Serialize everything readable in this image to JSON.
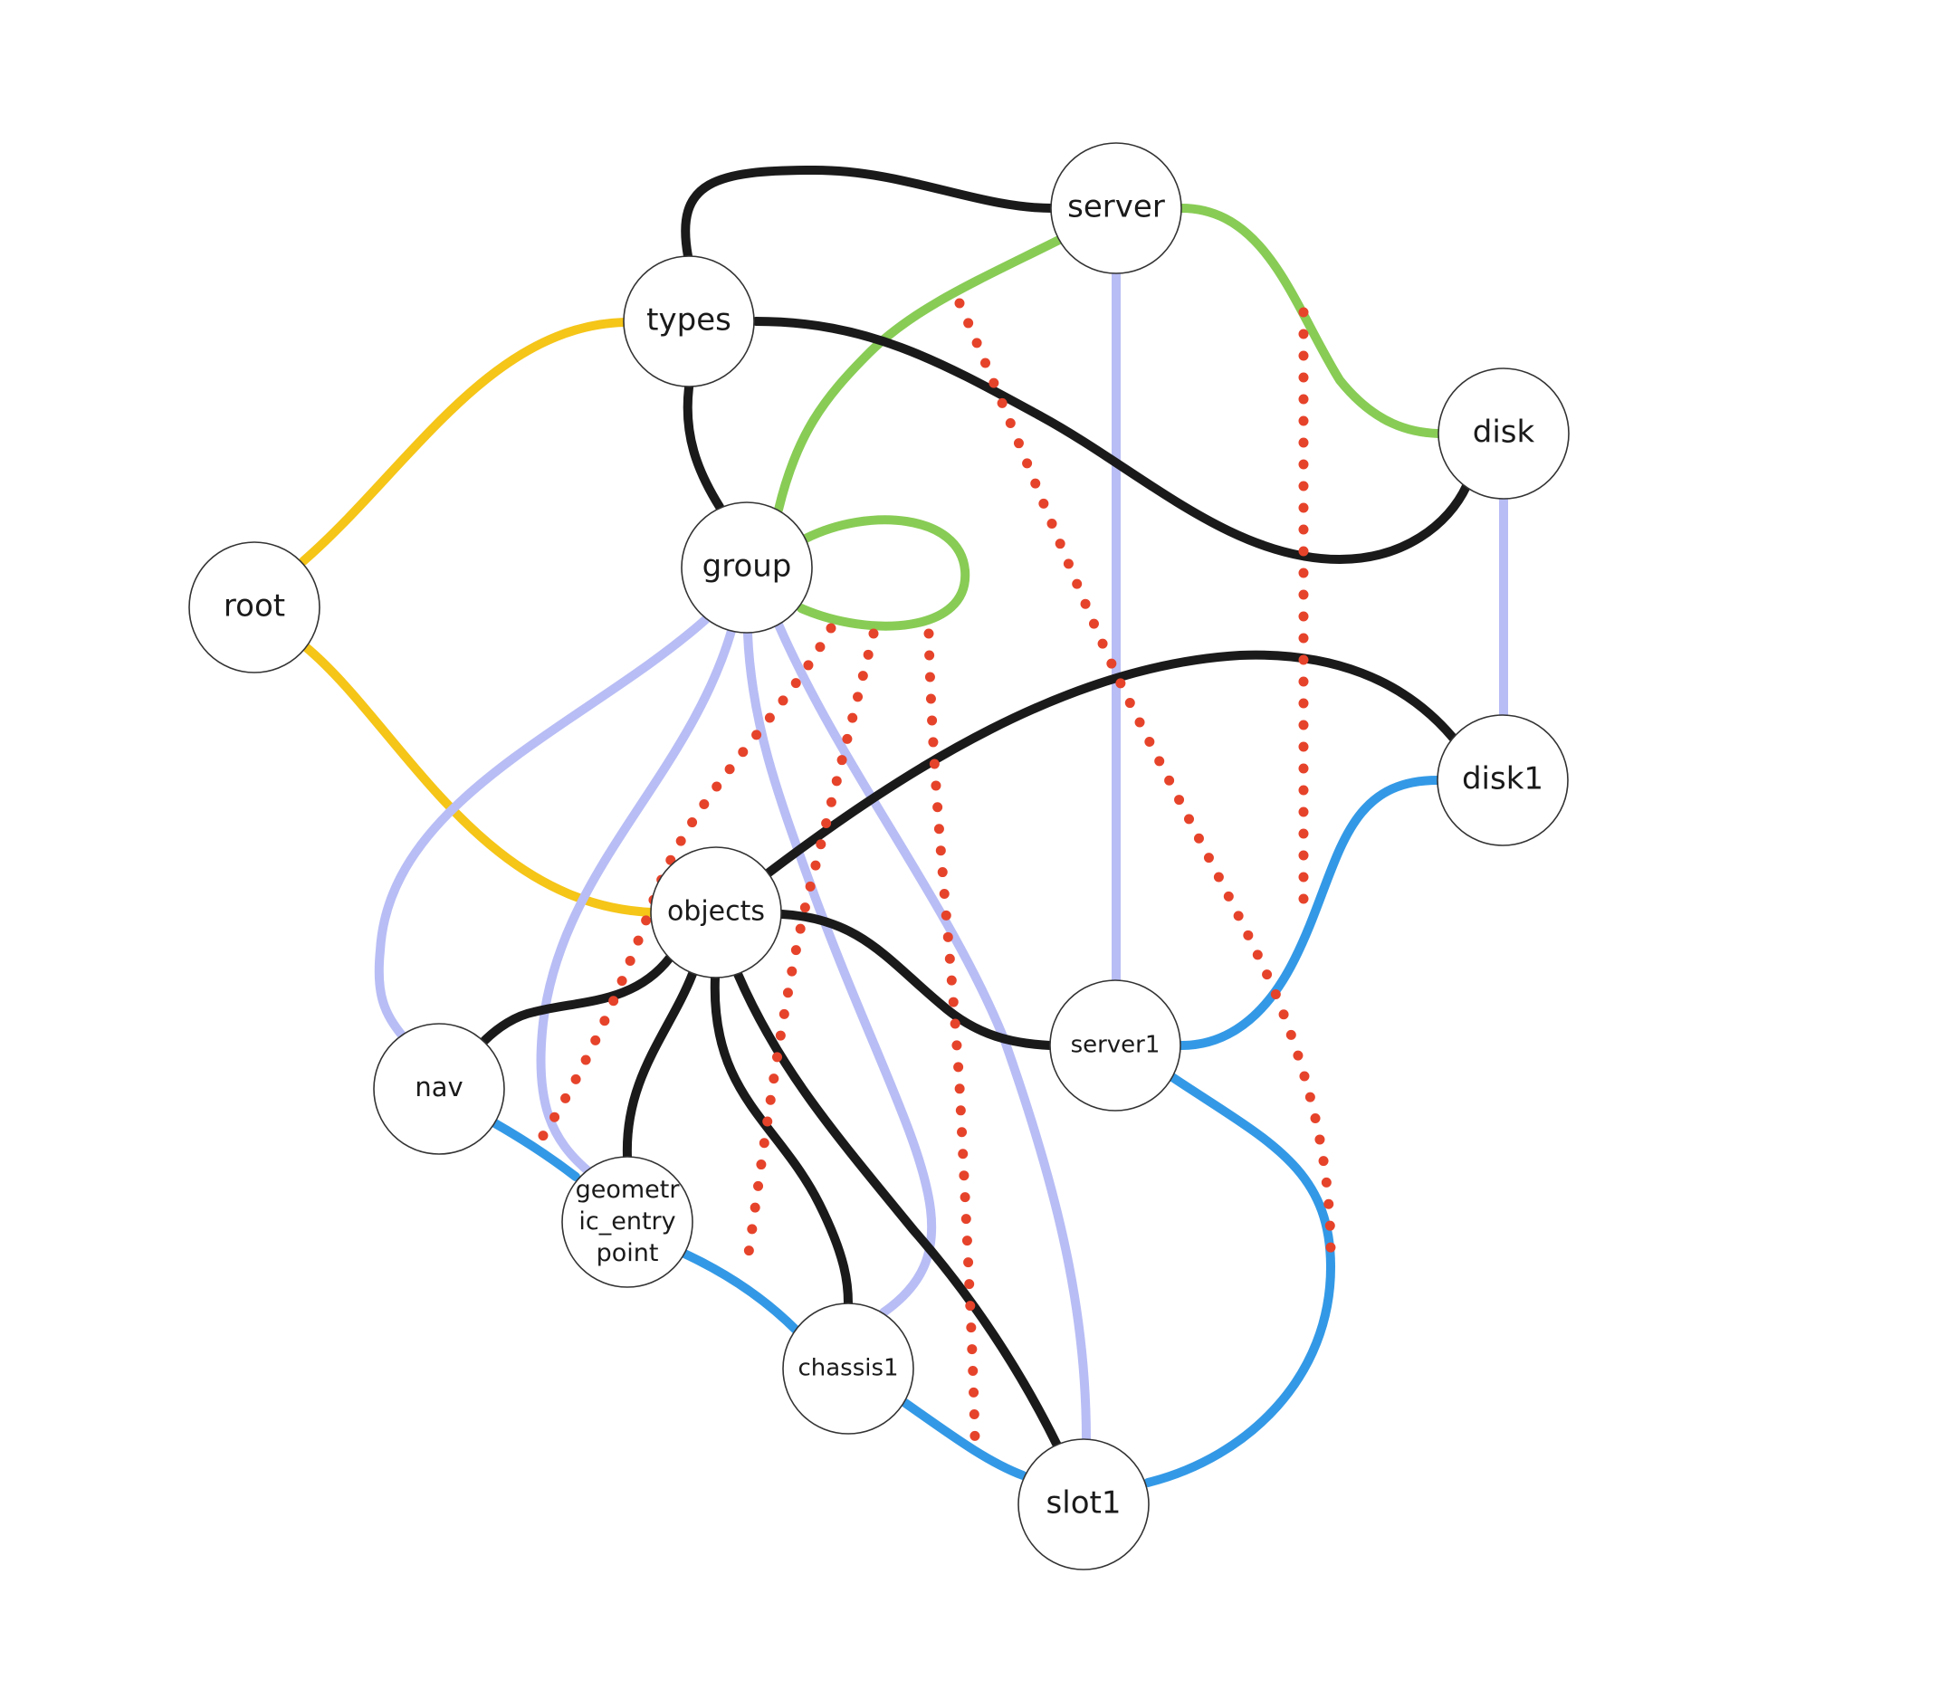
{
  "colors": {
    "hierarchy": "#f5c518",
    "structure": "#1a1a1a",
    "membership": "#88cc55",
    "reference": "#b8bdf5",
    "connection": "#3399e6",
    "dependency": "#e6432b"
  },
  "nodes": [
    {
      "id": "root",
      "label": "root"
    },
    {
      "id": "types",
      "label": "types"
    },
    {
      "id": "server",
      "label": "server"
    },
    {
      "id": "group",
      "label": "group"
    },
    {
      "id": "disk",
      "label": "disk"
    },
    {
      "id": "disk1",
      "label": "disk1"
    },
    {
      "id": "objects",
      "label": "objects"
    },
    {
      "id": "server1",
      "label": "server1"
    },
    {
      "id": "nav",
      "label": "nav"
    },
    {
      "id": "geometric_entry_point",
      "label": [
        "geometr",
        "ic_entry",
        "point"
      ]
    },
    {
      "id": "chassis1",
      "label": "chassis1"
    },
    {
      "id": "slot1",
      "label": "slot1"
    }
  ],
  "edges": [
    {
      "source": "root",
      "target": "types",
      "kind": "hierarchy"
    },
    {
      "source": "root",
      "target": "objects",
      "kind": "hierarchy"
    },
    {
      "source": "types",
      "target": "server",
      "kind": "structure"
    },
    {
      "source": "types",
      "target": "group",
      "kind": "structure"
    },
    {
      "source": "types",
      "target": "disk",
      "kind": "structure"
    },
    {
      "source": "objects",
      "target": "disk1",
      "kind": "structure"
    },
    {
      "source": "objects",
      "target": "server1",
      "kind": "structure"
    },
    {
      "source": "objects",
      "target": "nav",
      "kind": "structure"
    },
    {
      "source": "objects",
      "target": "geometric_entry_point",
      "kind": "structure"
    },
    {
      "source": "objects",
      "target": "chassis1",
      "kind": "structure"
    },
    {
      "source": "objects",
      "target": "slot1",
      "kind": "structure"
    },
    {
      "source": "server",
      "target": "disk",
      "kind": "membership"
    },
    {
      "source": "server",
      "target": "group",
      "kind": "membership"
    },
    {
      "source": "group",
      "target": "group",
      "kind": "membership"
    },
    {
      "source": "server",
      "target": "server1",
      "kind": "reference"
    },
    {
      "source": "disk",
      "target": "disk1",
      "kind": "reference"
    },
    {
      "source": "group",
      "target": "nav",
      "kind": "reference"
    },
    {
      "source": "group",
      "target": "geometric_entry_point",
      "kind": "reference"
    },
    {
      "source": "group",
      "target": "chassis1",
      "kind": "reference"
    },
    {
      "source": "group",
      "target": "slot1",
      "kind": "reference"
    },
    {
      "source": "disk1",
      "target": "server1",
      "kind": "connection"
    },
    {
      "source": "server1",
      "target": "slot1",
      "kind": "connection"
    },
    {
      "source": "nav",
      "target": "geometric_entry_point",
      "kind": "connection"
    },
    {
      "source": "geometric_entry_point",
      "target": "chassis1",
      "kind": "connection"
    },
    {
      "source": "chassis1",
      "target": "slot1",
      "kind": "connection"
    },
    {
      "source": "server-group",
      "target": "server1-slot1",
      "kind": "dependency"
    },
    {
      "source": "server-disk",
      "target": "disk1-server1",
      "kind": "dependency"
    },
    {
      "source": "group-group",
      "target": "nav-geometric_entry_point",
      "kind": "dependency"
    },
    {
      "source": "group-group",
      "target": "geometric_entry_point-chassis1",
      "kind": "dependency"
    },
    {
      "source": "group-group",
      "target": "chassis1-slot1",
      "kind": "dependency"
    }
  ]
}
